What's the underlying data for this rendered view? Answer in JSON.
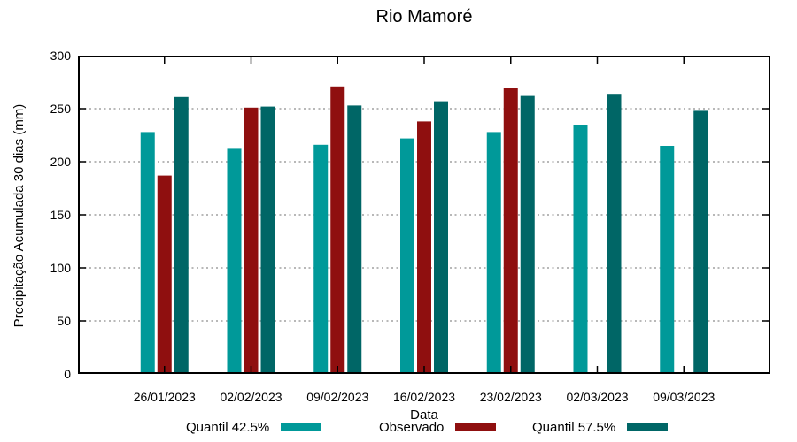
{
  "chart_data": {
    "type": "bar",
    "title": "Rio Mamoré",
    "xlabel": "Data",
    "ylabel": "Precipitação Acumulada 30 dias (mm)",
    "categories": [
      "26/01/2023",
      "02/02/2023",
      "09/02/2023",
      "16/02/2023",
      "23/02/2023",
      "02/03/2023",
      "09/03/2023"
    ],
    "series": [
      {
        "name": "Quantil 42.5%",
        "color": "#009999",
        "values": [
          228,
          213,
          216,
          222,
          228,
          235,
          215
        ]
      },
      {
        "name": "Observado",
        "color": "#8f0f0f",
        "values": [
          187,
          251,
          271,
          238,
          270,
          null,
          null
        ]
      },
      {
        "name": "Quantil 57.5%",
        "color": "#006666",
        "values": [
          261,
          252,
          253,
          257,
          262,
          264,
          248
        ]
      }
    ],
    "ylim": [
      0,
      300
    ],
    "ytick_step": 50,
    "grid": true,
    "grid_color": "#a0a0a0",
    "frame_color": "#000000",
    "legend_position": "bottom"
  }
}
